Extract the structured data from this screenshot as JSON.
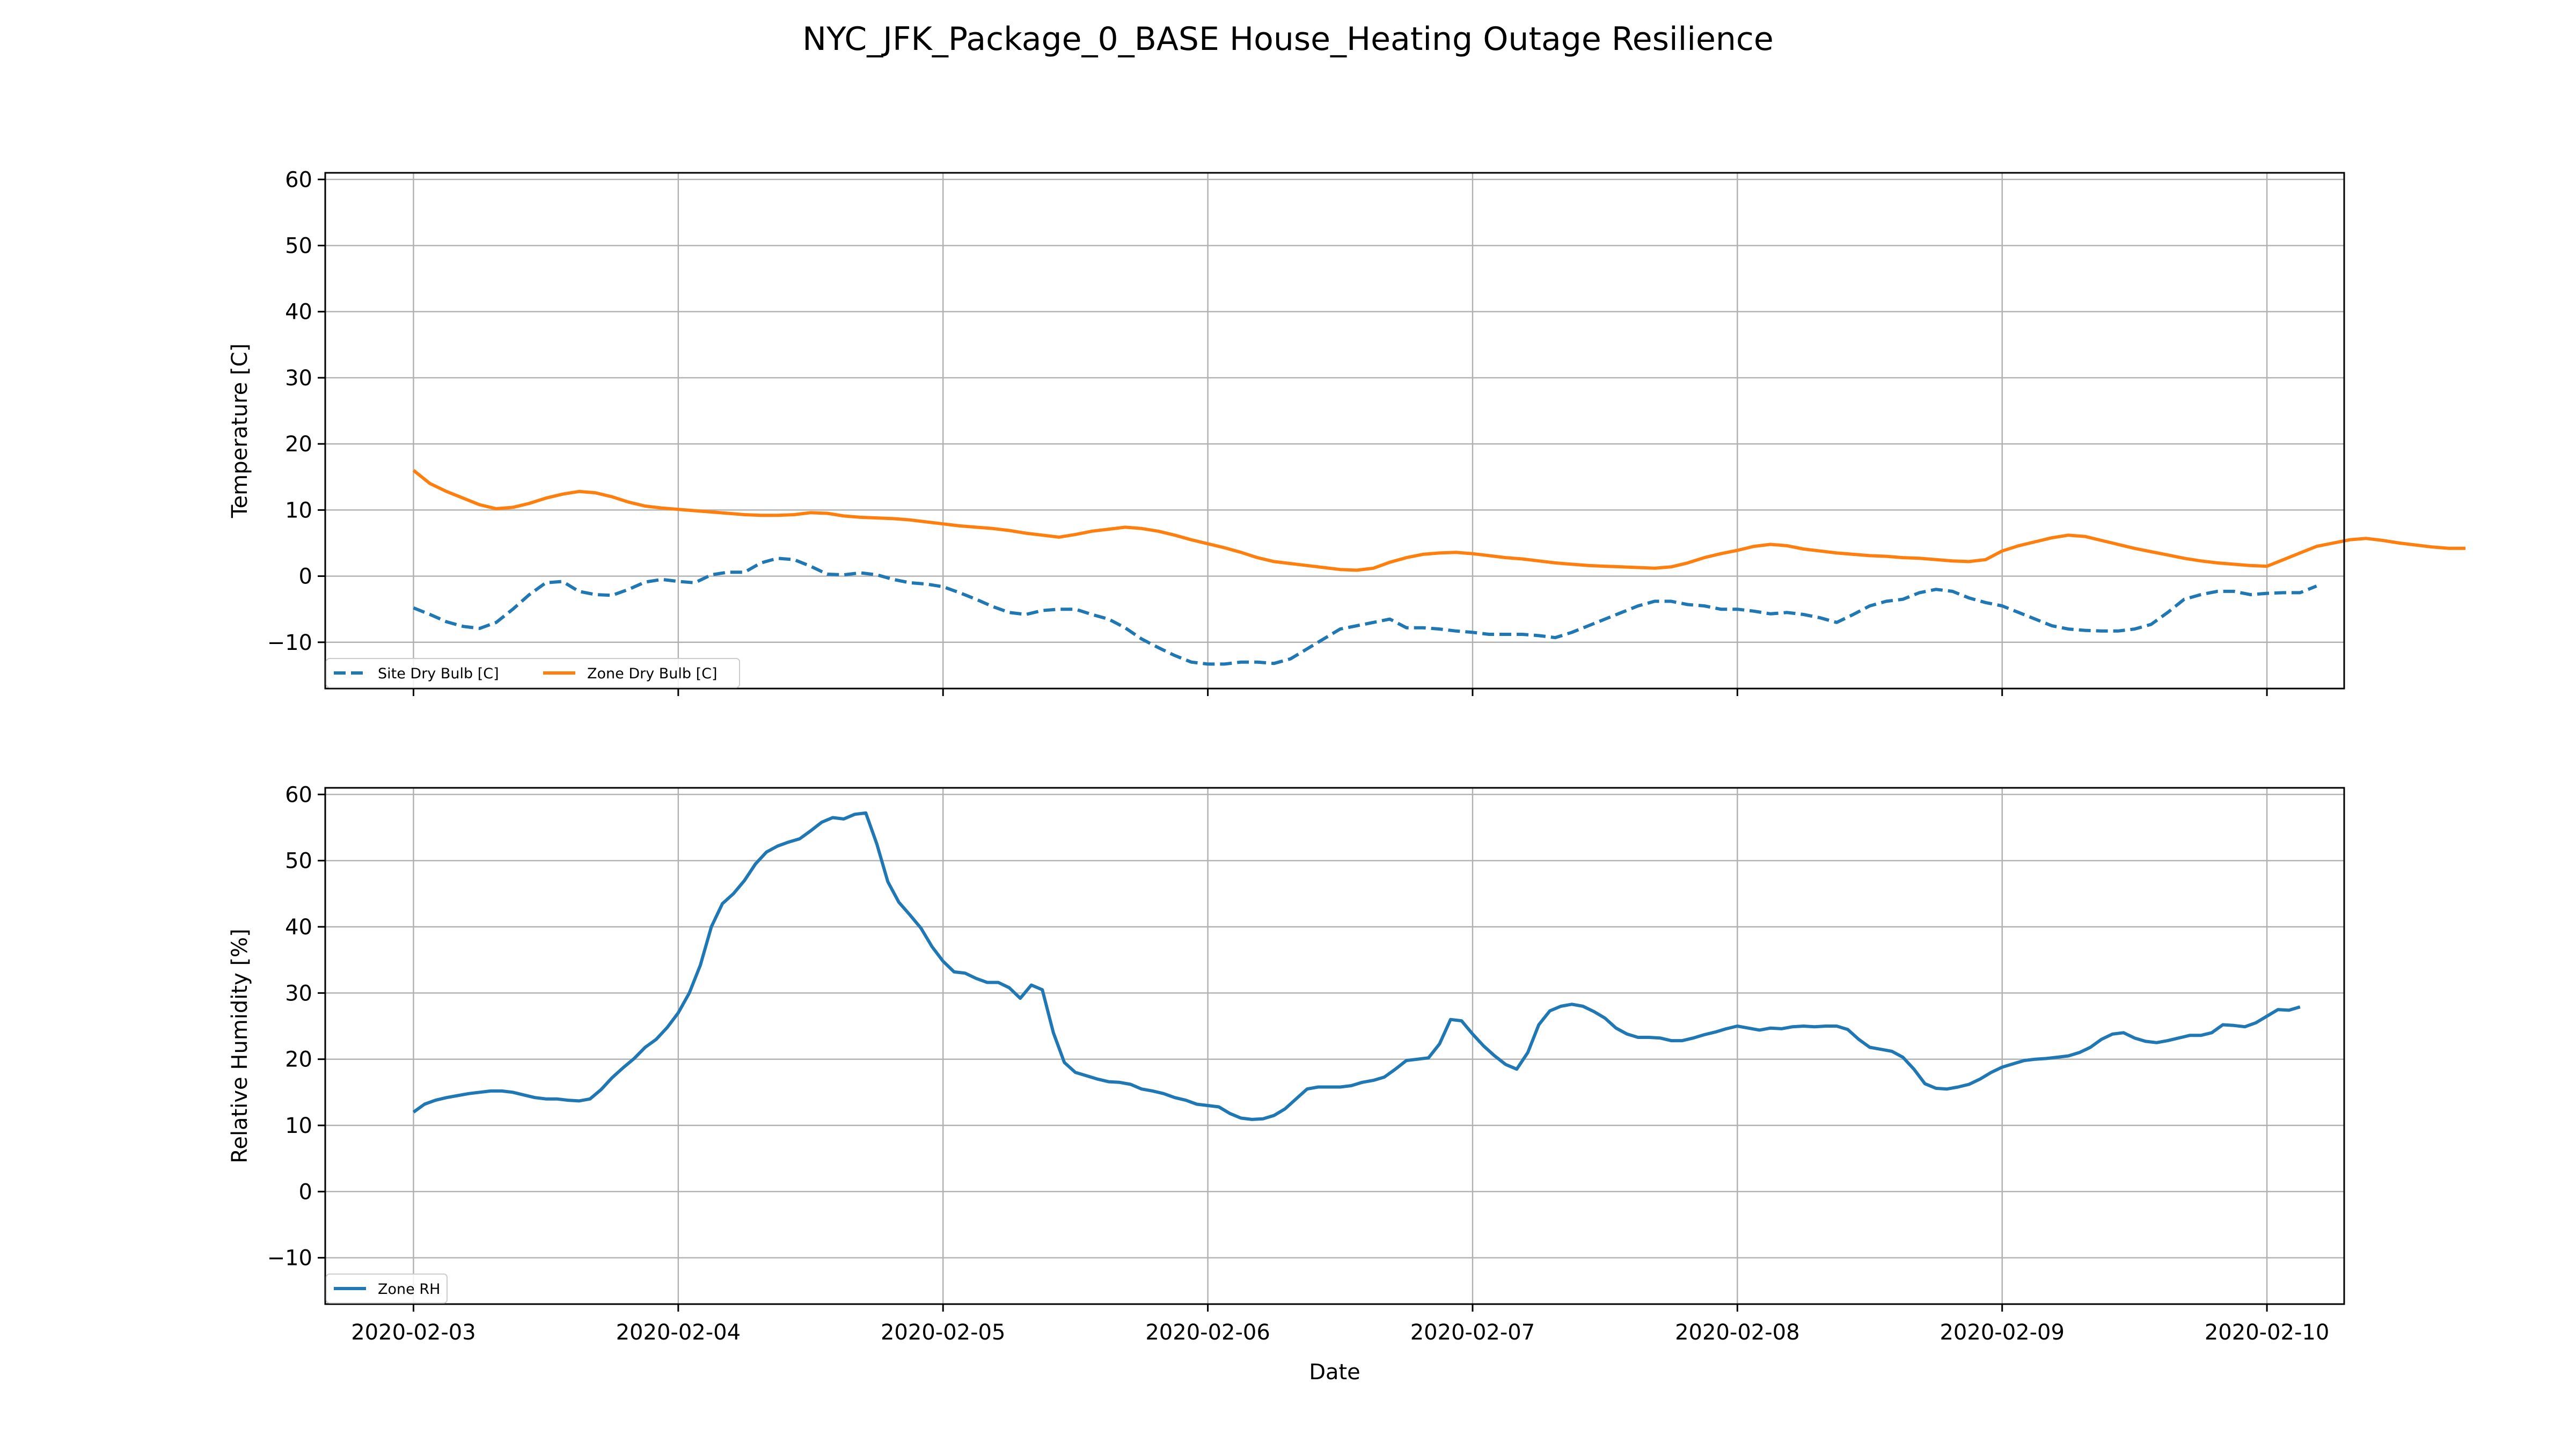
{
  "figure": {
    "title": "NYC_JFK_Package_0_BASE House_Heating Outage Resilience"
  },
  "chart_data": [
    {
      "type": "line",
      "ylabel": "Temperature [C]",
      "xlabel": "",
      "xlim": [
        "2020-02-02 16:00",
        "2020-02-10 07:00"
      ],
      "ylim": [
        -17,
        61
      ],
      "yticks": [
        -10,
        0,
        10,
        20,
        30,
        40,
        50,
        60
      ],
      "xticks": [
        "2020-02-03",
        "2020-02-04",
        "2020-02-05",
        "2020-02-06",
        "2020-02-07",
        "2020-02-08",
        "2020-02-09",
        "2020-02-10"
      ],
      "grid": true,
      "legend": "bottom-left",
      "x_start": "2020-02-03 00:00",
      "x_step_hours": 1.5,
      "series": [
        {
          "name": "Site Dry Bulb [C]",
          "color": "#1f77b4",
          "style": "dashed",
          "values": [
            -4.8,
            -5.8,
            -6.9,
            -7.6,
            -7.9,
            -7.0,
            -5.0,
            -2.8,
            -1.0,
            -0.8,
            -2.3,
            -2.8,
            -2.9,
            -2.0,
            -0.9,
            -0.5,
            -0.8,
            -1.0,
            0.2,
            0.6,
            0.6,
            2.0,
            2.7,
            2.5,
            1.5,
            0.3,
            0.2,
            0.5,
            0.2,
            -0.5,
            -1.0,
            -1.2,
            -1.6,
            -2.5,
            -3.5,
            -4.6,
            -5.5,
            -5.8,
            -5.2,
            -5.0,
            -5.0,
            -5.8,
            -6.5,
            -7.8,
            -9.5,
            -10.8,
            -12.0,
            -13.0,
            -13.3,
            -13.3,
            -13.0,
            -13.0,
            -13.2,
            -12.5,
            -11.0,
            -9.5,
            -8.0,
            -7.5,
            -7.0,
            -6.5,
            -7.8,
            -7.8,
            -8.0,
            -8.3,
            -8.5,
            -8.8,
            -8.8,
            -8.8,
            -9.0,
            -9.3,
            -8.5,
            -7.5,
            -6.5,
            -5.5,
            -4.5,
            -3.8,
            -3.8,
            -4.3,
            -4.5,
            -5.0,
            -5.0,
            -5.3,
            -5.7,
            -5.5,
            -5.8,
            -6.3,
            -7.0,
            -5.8,
            -4.5,
            -3.8,
            -3.5,
            -2.5,
            -2.0,
            -2.3,
            -3.3,
            -4.0,
            -4.5,
            -5.5,
            -6.5,
            -7.5,
            -8.0,
            -8.2,
            -8.3,
            -8.3,
            -8.0,
            -7.3,
            -5.5,
            -3.5,
            -2.8,
            -2.3,
            -2.3,
            -2.8,
            -2.6,
            -2.5,
            -2.5,
            -1.5
          ]
        },
        {
          "name": "Zone Dry Bulb [C]",
          "color": "#ff7f0e",
          "style": "solid",
          "values": [
            16.0,
            14.0,
            12.8,
            11.8,
            10.8,
            10.2,
            10.4,
            11.0,
            11.8,
            12.4,
            12.8,
            12.6,
            12.0,
            11.2,
            10.6,
            10.3,
            10.1,
            9.9,
            9.7,
            9.5,
            9.3,
            9.2,
            9.2,
            9.3,
            9.6,
            9.5,
            9.1,
            8.9,
            8.8,
            8.7,
            8.5,
            8.2,
            7.9,
            7.6,
            7.4,
            7.2,
            6.9,
            6.5,
            6.2,
            5.9,
            6.3,
            6.8,
            7.1,
            7.4,
            7.2,
            6.8,
            6.2,
            5.5,
            4.9,
            4.3,
            3.6,
            2.8,
            2.2,
            1.9,
            1.6,
            1.3,
            1.0,
            0.9,
            1.2,
            2.1,
            2.8,
            3.3,
            3.5,
            3.6,
            3.4,
            3.1,
            2.8,
            2.6,
            2.3,
            2.0,
            1.8,
            1.6,
            1.5,
            1.4,
            1.3,
            1.2,
            1.4,
            2.0,
            2.8,
            3.4,
            3.9,
            4.5,
            4.8,
            4.6,
            4.1,
            3.8,
            3.5,
            3.3,
            3.1,
            3.0,
            2.8,
            2.7,
            2.5,
            2.3,
            2.2,
            2.5,
            3.8,
            4.6,
            5.2,
            5.8,
            6.2,
            6.0,
            5.4,
            4.8,
            4.2,
            3.7,
            3.2,
            2.7,
            2.3,
            2.0,
            1.8,
            1.6,
            1.5,
            2.5,
            3.5,
            4.5,
            5.0,
            5.5,
            5.7,
            5.4,
            5.0,
            4.7,
            4.4,
            4.2,
            4.2
          ]
        }
      ]
    },
    {
      "type": "line",
      "ylabel": "Relative Humidity [%]",
      "xlabel": "Date",
      "xlim": [
        "2020-02-02 16:00",
        "2020-02-10 07:00"
      ],
      "ylim": [
        -17,
        61
      ],
      "yticks": [
        -10,
        0,
        10,
        20,
        30,
        40,
        50,
        60
      ],
      "xticks": [
        "2020-02-03",
        "2020-02-04",
        "2020-02-05",
        "2020-02-06",
        "2020-02-07",
        "2020-02-08",
        "2020-02-09",
        "2020-02-10"
      ],
      "grid": true,
      "legend": "bottom-left",
      "x_start": "2020-02-03 00:00",
      "x_step_hours": 1,
      "series": [
        {
          "name": "Zone RH",
          "color": "#1f77b4",
          "style": "solid",
          "values": [
            12.0,
            13.2,
            13.8,
            14.2,
            14.5,
            14.8,
            15.0,
            15.2,
            15.2,
            15.0,
            14.6,
            14.2,
            14.0,
            14.0,
            13.8,
            13.7,
            14.0,
            15.4,
            17.2,
            18.7,
            20.1,
            21.8,
            23.0,
            24.8,
            27.0,
            30.0,
            34.2,
            40.0,
            43.5,
            45.0,
            47.0,
            49.5,
            51.3,
            52.2,
            52.8,
            53.3,
            54.5,
            55.8,
            56.5,
            56.3,
            57.0,
            57.2,
            52.5,
            46.8,
            43.7,
            41.8,
            39.8,
            37.0,
            34.8,
            33.2,
            33.0,
            32.2,
            31.6,
            31.6,
            30.8,
            29.2,
            31.2,
            30.5,
            24.0,
            19.5,
            18.0,
            17.5,
            17.0,
            16.6,
            16.5,
            16.2,
            15.5,
            15.2,
            14.8,
            14.2,
            13.8,
            13.2,
            13.0,
            12.8,
            11.8,
            11.1,
            10.9,
            11.0,
            11.5,
            12.5,
            14.0,
            15.5,
            15.8,
            15.8,
            15.8,
            16.0,
            16.5,
            16.8,
            17.3,
            18.5,
            19.8,
            20.0,
            20.2,
            22.3,
            26.0,
            25.8,
            23.8,
            22.0,
            20.5,
            19.2,
            18.5,
            21.0,
            25.2,
            27.3,
            28.0,
            28.3,
            28.0,
            27.2,
            26.2,
            24.7,
            23.8,
            23.3,
            23.3,
            23.2,
            22.8,
            22.8,
            23.2,
            23.7,
            24.1,
            24.6,
            25.0,
            24.7,
            24.4,
            24.7,
            24.6,
            24.9,
            25.0,
            24.9,
            25.0,
            25.0,
            24.5,
            23.0,
            21.8,
            21.5,
            21.2,
            20.3,
            18.5,
            16.3,
            15.6,
            15.5,
            15.8,
            16.2,
            17.0,
            18.0,
            18.8,
            19.3,
            19.8,
            20.0,
            20.1,
            20.3,
            20.5,
            21.0,
            21.8,
            23.0,
            23.8,
            24.0,
            23.2,
            22.7,
            22.5,
            22.8,
            23.2,
            23.6,
            23.6,
            24.0,
            25.2,
            25.1,
            24.9,
            25.5,
            26.5,
            27.5,
            27.4,
            27.9
          ]
        }
      ]
    }
  ]
}
